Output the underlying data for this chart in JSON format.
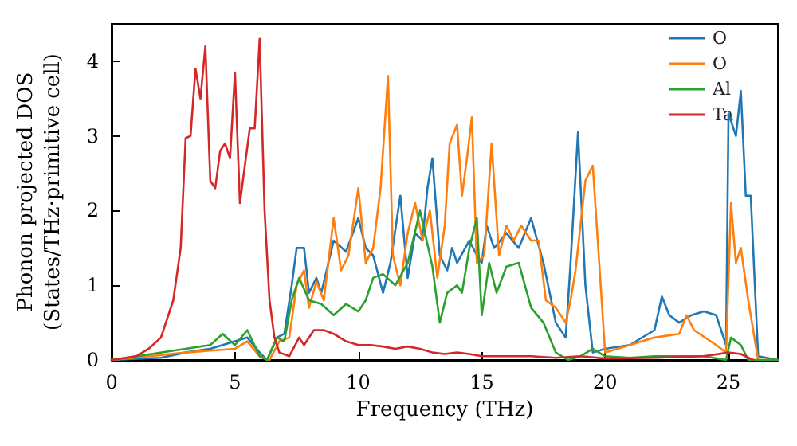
{
  "chart_data": {
    "type": "line",
    "xlabel": "Frequency (THz)",
    "ylabel": "Phonon projected DOS\n(States/THz·primitive cell)",
    "xlim": [
      0,
      27
    ],
    "xticks": [
      0,
      5,
      10,
      15,
      20,
      25
    ],
    "ylim": [
      0,
      4.5
    ],
    "yticks": [
      0,
      1,
      2,
      3,
      4
    ],
    "grid": false,
    "legend": "top right",
    "marker": "none",
    "line_style": "solid",
    "series": [
      {
        "name": "O",
        "color": "#1f77b4",
        "x": [
          0,
          2,
          3,
          4,
          5,
          5.5,
          6,
          6.3,
          6.7,
          7,
          7.3,
          7.5,
          7.8,
          8,
          8.3,
          8.5,
          9,
          9.5,
          10,
          10.3,
          10.6,
          11,
          11.3,
          11.7,
          12,
          12.3,
          12.6,
          12.8,
          13,
          13.3,
          13.6,
          13.8,
          14,
          14.5,
          14.8,
          15,
          15.2,
          15.5,
          16,
          16.5,
          17,
          17.5,
          18,
          18.4,
          18.6,
          18.9,
          19.2,
          19.5,
          20,
          21,
          22,
          22.3,
          22.6,
          23,
          23.5,
          24,
          24.5,
          24.9,
          25.0,
          25.1,
          25.3,
          25.5,
          25.7,
          25.9,
          26.2,
          27
        ],
        "values": [
          0,
          0.03,
          0.1,
          0.15,
          0.25,
          0.3,
          0.1,
          0,
          0.3,
          0.35,
          1.0,
          1.5,
          1.5,
          0.9,
          1.1,
          0.9,
          1.6,
          1.45,
          1.9,
          1.5,
          1.4,
          0.9,
          1.3,
          2.2,
          1.1,
          1.7,
          1.6,
          2.3,
          2.7,
          1.4,
          1.2,
          1.5,
          1.3,
          1.6,
          1.4,
          1.3,
          1.8,
          1.5,
          1.7,
          1.5,
          1.9,
          1.3,
          0.5,
          0.3,
          1.3,
          3.05,
          1.0,
          0.1,
          0.15,
          0.2,
          0.4,
          0.85,
          0.6,
          0.5,
          0.6,
          0.65,
          0.6,
          0.2,
          3.3,
          3.2,
          3.0,
          3.6,
          2.2,
          2.2,
          0.05,
          0
        ]
      },
      {
        "name": "O",
        "color": "#ff7f0e",
        "x": [
          0,
          3,
          5,
          5.5,
          6,
          6.4,
          6.8,
          7.2,
          7.5,
          7.8,
          8,
          8.3,
          8.6,
          9,
          9.3,
          9.6,
          10,
          10.3,
          10.6,
          10.9,
          11.2,
          11.4,
          11.7,
          12,
          12.3,
          12.6,
          12.9,
          13.2,
          13.5,
          13.7,
          14,
          14.2,
          14.4,
          14.6,
          14.8,
          15.1,
          15.4,
          15.7,
          16,
          16.3,
          16.6,
          17,
          17.3,
          17.6,
          18,
          18.4,
          18.6,
          18.8,
          19.2,
          19.5,
          20,
          20.5,
          22,
          23,
          23.3,
          23.6,
          24.5,
          24.9,
          25.1,
          25.3,
          25.5,
          25.8,
          26.2,
          27
        ],
        "values": [
          0,
          0.1,
          0.15,
          0.25,
          0.05,
          0,
          0.25,
          0.3,
          1.0,
          1.2,
          0.7,
          1.05,
          0.8,
          1.9,
          1.2,
          1.4,
          2.3,
          1.3,
          1.5,
          2.3,
          3.8,
          1.4,
          1.0,
          1.7,
          2.1,
          1.6,
          2.0,
          1.1,
          1.8,
          2.9,
          3.15,
          2.2,
          2.7,
          3.25,
          1.3,
          1.4,
          2.9,
          1.4,
          1.8,
          1.6,
          1.8,
          1.6,
          1.6,
          0.8,
          0.7,
          0.5,
          0.8,
          1.2,
          2.4,
          2.6,
          0.1,
          0.15,
          0.3,
          0.35,
          0.6,
          0.4,
          0.2,
          0.1,
          2.1,
          1.3,
          1.5,
          0.8,
          0,
          0
        ]
      },
      {
        "name": "Al",
        "color": "#2ca02c",
        "x": [
          0,
          3,
          4,
          4.5,
          5,
          5.5,
          6,
          6.3,
          6.7,
          7,
          7.3,
          7.6,
          8,
          8.5,
          9,
          9.5,
          10,
          10.3,
          10.6,
          11,
          11.5,
          12,
          12.5,
          13,
          13.3,
          13.6,
          14,
          14.2,
          14.5,
          14.8,
          15,
          15.3,
          15.6,
          16,
          16.5,
          17,
          17.5,
          18,
          18.5,
          19,
          19.5,
          20,
          21,
          22,
          24,
          24.9,
          25.1,
          25.5,
          25.8,
          27
        ],
        "values": [
          0,
          0.15,
          0.2,
          0.35,
          0.2,
          0.4,
          0.05,
          0,
          0.3,
          0.25,
          0.8,
          1.1,
          0.8,
          0.75,
          0.6,
          0.75,
          0.65,
          0.8,
          1.1,
          1.15,
          1.0,
          1.3,
          2.0,
          1.25,
          0.5,
          0.9,
          1.0,
          0.9,
          1.5,
          1.9,
          0.6,
          1.3,
          0.9,
          1.25,
          1.3,
          0.7,
          0.5,
          0.1,
          0,
          0.05,
          0.15,
          0.05,
          0.03,
          0.05,
          0.05,
          0,
          0.3,
          0.2,
          0,
          0
        ]
      },
      {
        "name": "Ta",
        "color": "#d62728",
        "x": [
          0,
          1,
          1.5,
          2,
          2.5,
          2.8,
          3.0,
          3.2,
          3.4,
          3.6,
          3.8,
          4.0,
          4.2,
          4.4,
          4.6,
          4.8,
          5.0,
          5.2,
          5.4,
          5.6,
          5.8,
          6.0,
          6.2,
          6.4,
          6.6,
          6.8,
          7.2,
          7.6,
          7.8,
          8.2,
          8.6,
          9,
          9.5,
          10,
          10.5,
          11,
          11.5,
          12,
          12.5,
          13,
          13.5,
          14,
          14.5,
          15,
          16,
          17,
          18,
          19,
          20,
          22,
          24,
          25,
          25.5,
          26
        ],
        "values": [
          0,
          0.05,
          0.15,
          0.3,
          0.8,
          1.5,
          2.97,
          3.0,
          3.9,
          3.5,
          4.2,
          2.4,
          2.3,
          2.8,
          2.9,
          2.7,
          3.85,
          2.1,
          2.6,
          3.1,
          3.1,
          4.3,
          2.0,
          0.8,
          0.3,
          0.1,
          0.05,
          0.3,
          0.2,
          0.4,
          0.4,
          0.35,
          0.25,
          0.2,
          0.2,
          0.18,
          0.15,
          0.18,
          0.15,
          0.1,
          0.08,
          0.1,
          0.08,
          0.05,
          0.05,
          0.05,
          0.03,
          0.05,
          0.02,
          0.03,
          0.05,
          0.1,
          0.08,
          0
        ]
      }
    ]
  }
}
